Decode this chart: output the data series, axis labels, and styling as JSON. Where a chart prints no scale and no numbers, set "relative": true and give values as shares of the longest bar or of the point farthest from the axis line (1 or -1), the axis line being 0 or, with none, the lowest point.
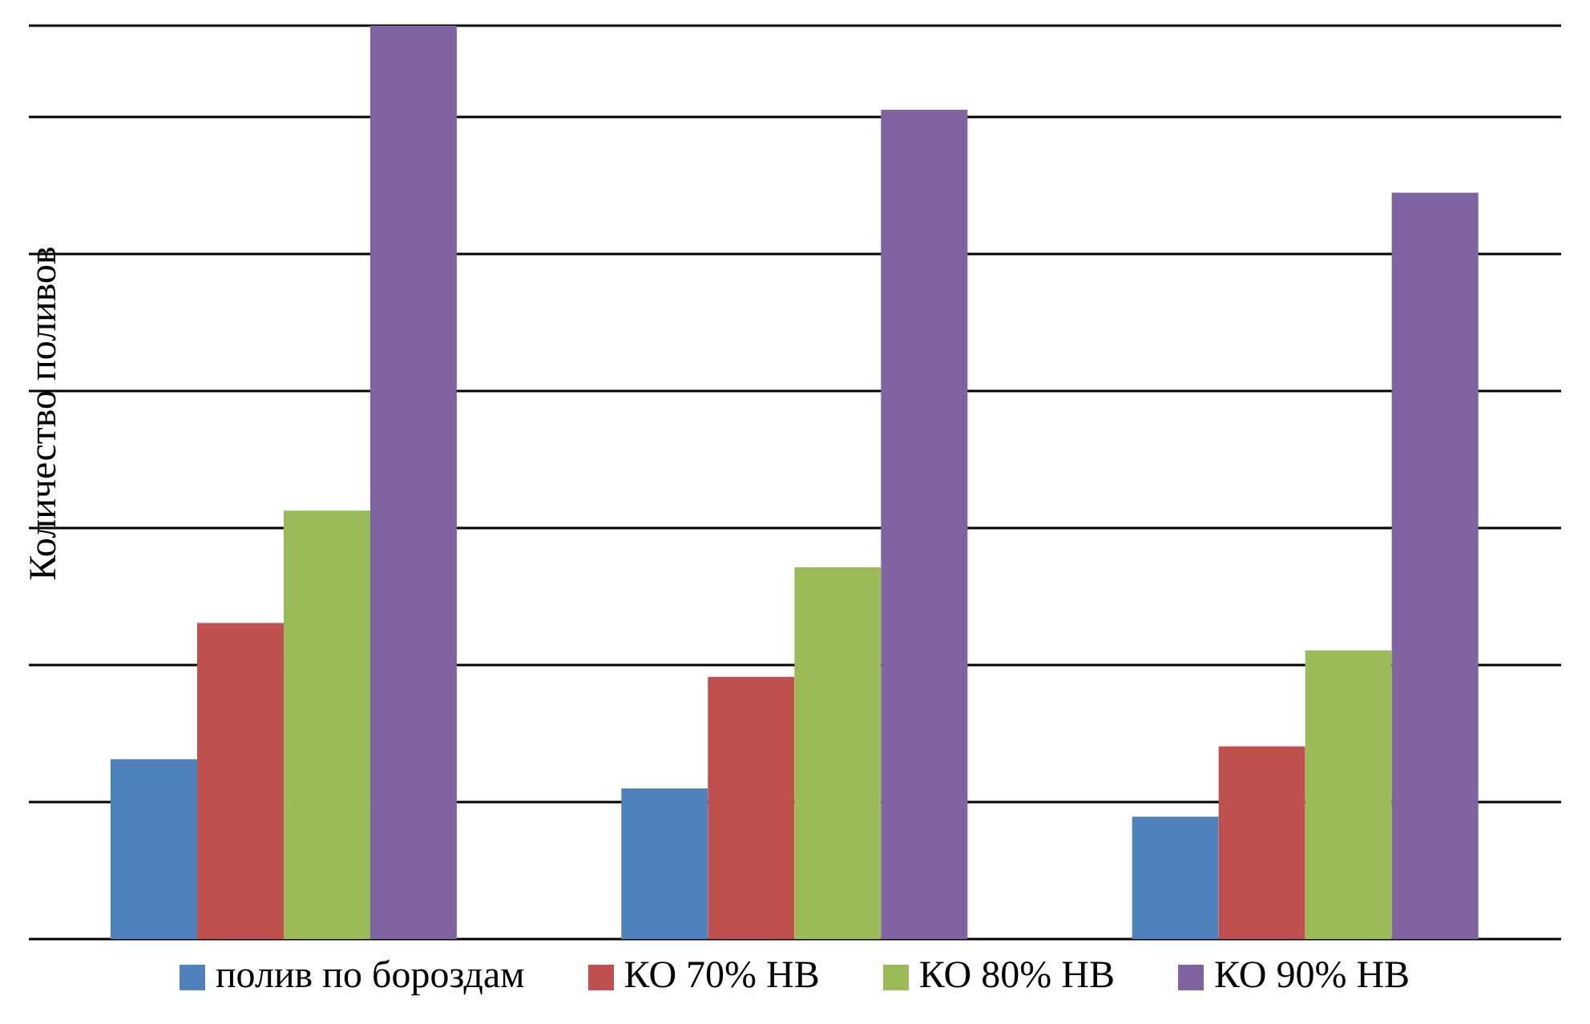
{
  "chart_data": {
    "type": "bar",
    "ylabel": "Количество поливов",
    "categories": [
      null,
      null,
      null
    ],
    "relative": true,
    "grid": "y",
    "legend": "bottom",
    "series": [
      {
        "name": "полив по бороздам",
        "color": "#4f81bd",
        "values": [
          0.197,
          0.165,
          0.134
        ]
      },
      {
        "name": "КО 70% НВ",
        "color": "#c0504d",
        "values": [
          0.346,
          0.287,
          0.211
        ]
      },
      {
        "name": "КО 80% НВ",
        "color": "#9bbb59",
        "values": [
          0.469,
          0.407,
          0.316
        ]
      },
      {
        "name": "КО 90% НВ",
        "color": "#8064a2",
        "values": [
          1,
          0.908,
          0.817
        ]
      }
    ]
  }
}
